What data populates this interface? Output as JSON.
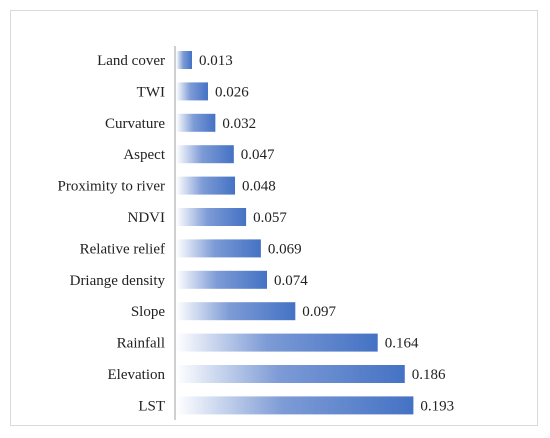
{
  "chart_data": {
    "type": "bar",
    "orientation": "horizontal",
    "title": "",
    "xlabel": "",
    "ylabel": "",
    "categories": [
      "Land cover",
      "TWI",
      "Curvature",
      "Aspect",
      "Proximity to river",
      "NDVI",
      "Relative relief",
      "Driange density",
      "Slope",
      "Rainfall",
      "Elevation",
      "LST"
    ],
    "values": [
      0.013,
      0.026,
      0.032,
      0.047,
      0.048,
      0.057,
      0.069,
      0.074,
      0.097,
      0.164,
      0.186,
      0.193
    ],
    "value_labels": [
      "0.013",
      "0.026",
      "0.032",
      "0.047",
      "0.048",
      "0.057",
      "0.069",
      "0.074",
      "0.097",
      "0.164",
      "0.186",
      "0.193"
    ],
    "xlim": [
      0,
      0.2
    ],
    "grid": false,
    "legend": "none",
    "colors": {
      "bar_start": "#ffffff",
      "bar_end": "#4472c4",
      "axis": "#bfbfbf",
      "text": "#222222"
    }
  }
}
